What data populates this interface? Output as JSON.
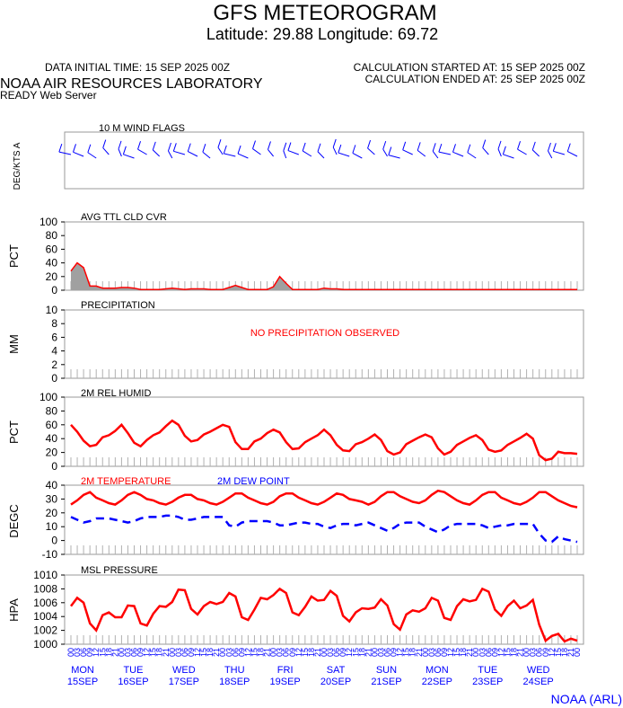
{
  "header": {
    "title": "GFS METEOROGRAM",
    "location": "Latitude: 29.88 Longitude:  69.72",
    "data_time": "DATA INITIAL TIME: 15 SEP 2025 00Z",
    "calc_start": "CALCULATION STARTED AT: 15 SEP 2025 00Z",
    "org": "NOAA AIR RESOURCES LABORATORY",
    "calc_end": "CALCULATION ENDED AT: 25 SEP 2025 00Z",
    "server": "READY Web Server",
    "credit": "NOAA (ARL)"
  },
  "colors": {
    "red": "#ff0000",
    "blue": "#0000ff",
    "gray": "#a0a0a0"
  },
  "chart_data": [
    {
      "type": "wind_flags",
      "title": "10 M  WIND FLAGS",
      "ylabel": "DEG/KTS  A"
    },
    {
      "type": "area",
      "title": "AVG TTL CLD CVR",
      "ylabel": "PCT",
      "ylim": [
        0,
        100
      ],
      "yticks": [
        0,
        20,
        40,
        60,
        80,
        100
      ],
      "values": [
        28,
        40,
        33,
        6,
        6,
        3,
        3,
        3,
        4,
        4,
        3,
        1,
        1,
        1,
        1,
        2,
        3,
        2,
        1,
        2,
        2,
        2,
        1,
        1,
        1,
        4,
        7,
        4,
        1,
        1,
        1,
        1,
        5,
        20,
        10,
        1,
        1,
        1,
        1,
        1,
        3,
        2,
        2,
        1,
        1,
        1,
        1,
        1,
        1,
        1,
        1,
        1,
        1,
        1,
        1,
        1,
        1,
        1,
        1,
        1,
        1,
        1,
        1,
        1,
        1,
        1,
        1,
        1,
        1,
        1,
        1,
        1,
        1,
        1,
        1,
        1,
        1,
        1,
        1,
        1,
        1
      ]
    },
    {
      "type": "bar",
      "title": "PRECIPITATION",
      "ylabel": "MM",
      "ylim": [
        0,
        10
      ],
      "yticks": [
        0,
        2,
        4,
        6,
        8,
        10
      ],
      "note": "NO PRECIPITATION OBSERVED",
      "values": []
    },
    {
      "type": "line",
      "title": "2M REL HUMID",
      "ylabel": "PCT",
      "ylim": [
        0,
        100
      ],
      "yticks": [
        0,
        20,
        40,
        60,
        80,
        100
      ],
      "values": [
        60,
        50,
        37,
        29,
        31,
        42,
        45,
        51,
        60,
        48,
        34,
        29,
        38,
        45,
        49,
        58,
        66,
        60,
        44,
        36,
        38,
        46,
        50,
        55,
        60,
        57,
        35,
        25,
        25,
        36,
        40,
        48,
        53,
        49,
        35,
        25,
        26,
        35,
        40,
        45,
        53,
        45,
        31,
        23,
        22,
        32,
        35,
        40,
        46,
        38,
        22,
        17,
        20,
        32,
        37,
        42,
        46,
        42,
        26,
        17,
        21,
        31,
        36,
        41,
        45,
        38,
        24,
        21,
        23,
        31,
        36,
        41,
        47,
        40,
        16,
        9,
        11,
        21,
        19,
        19,
        18
      ]
    },
    {
      "type": "line",
      "title": "2M TEMPERATURE",
      "title2": "2M   DEW POINT",
      "ylabel": "DEGC",
      "ylim": [
        -10,
        40
      ],
      "yticks": [
        -10,
        0,
        10,
        20,
        30,
        40
      ],
      "series": [
        {
          "name": "2M TEMPERATURE",
          "values": [
            26,
            29,
            33,
            35,
            31,
            29,
            27,
            26,
            29,
            33,
            35,
            33,
            30,
            29,
            27,
            26,
            28,
            31,
            33,
            33,
            30,
            29,
            27,
            26,
            28,
            31,
            34,
            34,
            31,
            29,
            27,
            26,
            28,
            32,
            34,
            34,
            31,
            29,
            27,
            26,
            28,
            31,
            34,
            33,
            30,
            29,
            28,
            26,
            28,
            32,
            35,
            35,
            32,
            30,
            28,
            27,
            29,
            33,
            36,
            35,
            32,
            29,
            27,
            26,
            29,
            33,
            35,
            35,
            31,
            29,
            27,
            26,
            28,
            31,
            35,
            35,
            32,
            29,
            27,
            25,
            24
          ]
        },
        {
          "name": "2M   DEW POINT",
          "values": [
            17,
            15,
            13,
            14,
            16,
            16,
            16,
            15,
            14,
            13,
            14,
            16,
            17,
            17,
            17,
            18,
            18,
            17,
            15,
            15,
            16,
            17,
            17,
            17,
            17,
            11,
            10,
            13,
            14,
            14,
            14,
            14,
            13,
            11,
            11,
            12,
            13,
            13,
            12,
            12,
            10,
            9,
            11,
            12,
            12,
            11,
            12,
            13,
            11,
            9,
            7,
            9,
            12,
            13,
            13,
            13,
            10,
            8,
            6,
            8,
            11,
            12,
            12,
            12,
            12,
            11,
            9,
            10,
            11,
            11,
            12,
            12,
            12,
            12,
            5,
            0,
            -1,
            3,
            1,
            0,
            -1
          ]
        }
      ]
    },
    {
      "type": "line",
      "title": "MSL PRESSURE",
      "ylabel": "HPA",
      "ylim": [
        1000,
        1010
      ],
      "yticks": [
        1000,
        1002,
        1004,
        1006,
        1008,
        1010
      ],
      "values": [
        1005.5,
        1006.7,
        1006.0,
        1003.0,
        1002.0,
        1004.2,
        1004.6,
        1003.9,
        1003.9,
        1005.6,
        1005.5,
        1003.0,
        1002.7,
        1004.4,
        1005.5,
        1005.4,
        1006.1,
        1007.9,
        1007.8,
        1005.1,
        1004.3,
        1005.5,
        1006.1,
        1005.8,
        1006.1,
        1007.4,
        1006.9,
        1003.9,
        1003.5,
        1005.0,
        1006.7,
        1006.5,
        1007.1,
        1008.0,
        1007.4,
        1004.6,
        1004.2,
        1005.4,
        1006.9,
        1006.3,
        1006.4,
        1007.7,
        1007.0,
        1004.1,
        1003.3,
        1004.6,
        1005.2,
        1005.1,
        1005.3,
        1006.5,
        1005.6,
        1002.9,
        1002.1,
        1004.3,
        1004.9,
        1004.7,
        1005.2,
        1006.7,
        1006.3,
        1003.8,
        1003.5,
        1005.5,
        1006.5,
        1006.2,
        1006.4,
        1008.0,
        1007.6,
        1005.0,
        1004.1,
        1005.5,
        1006.3,
        1005.2,
        1005.6,
        1006.4,
        1002.8,
        1000.5,
        1001.2,
        1001.5,
        1000.4,
        1000.8,
        1000.5
      ]
    }
  ],
  "x_axis": {
    "days": [
      {
        "dow": "MON",
        "date": "15SEP"
      },
      {
        "dow": "TUE",
        "date": "16SEP"
      },
      {
        "dow": "WED",
        "date": "17SEP"
      },
      {
        "dow": "THU",
        "date": "18SEP"
      },
      {
        "dow": "FRI",
        "date": "19SEP"
      },
      {
        "dow": "SAT",
        "date": "20SEP"
      },
      {
        "dow": "SUN",
        "date": "21SEP"
      },
      {
        "dow": "MON",
        "date": "22SEP"
      },
      {
        "dow": "TUE",
        "date": "23SEP"
      },
      {
        "dow": "WED",
        "date": "24SEP"
      }
    ],
    "hour_labels": [
      "00",
      "03",
      "06",
      "09",
      "12",
      "15",
      "18",
      "21"
    ]
  }
}
